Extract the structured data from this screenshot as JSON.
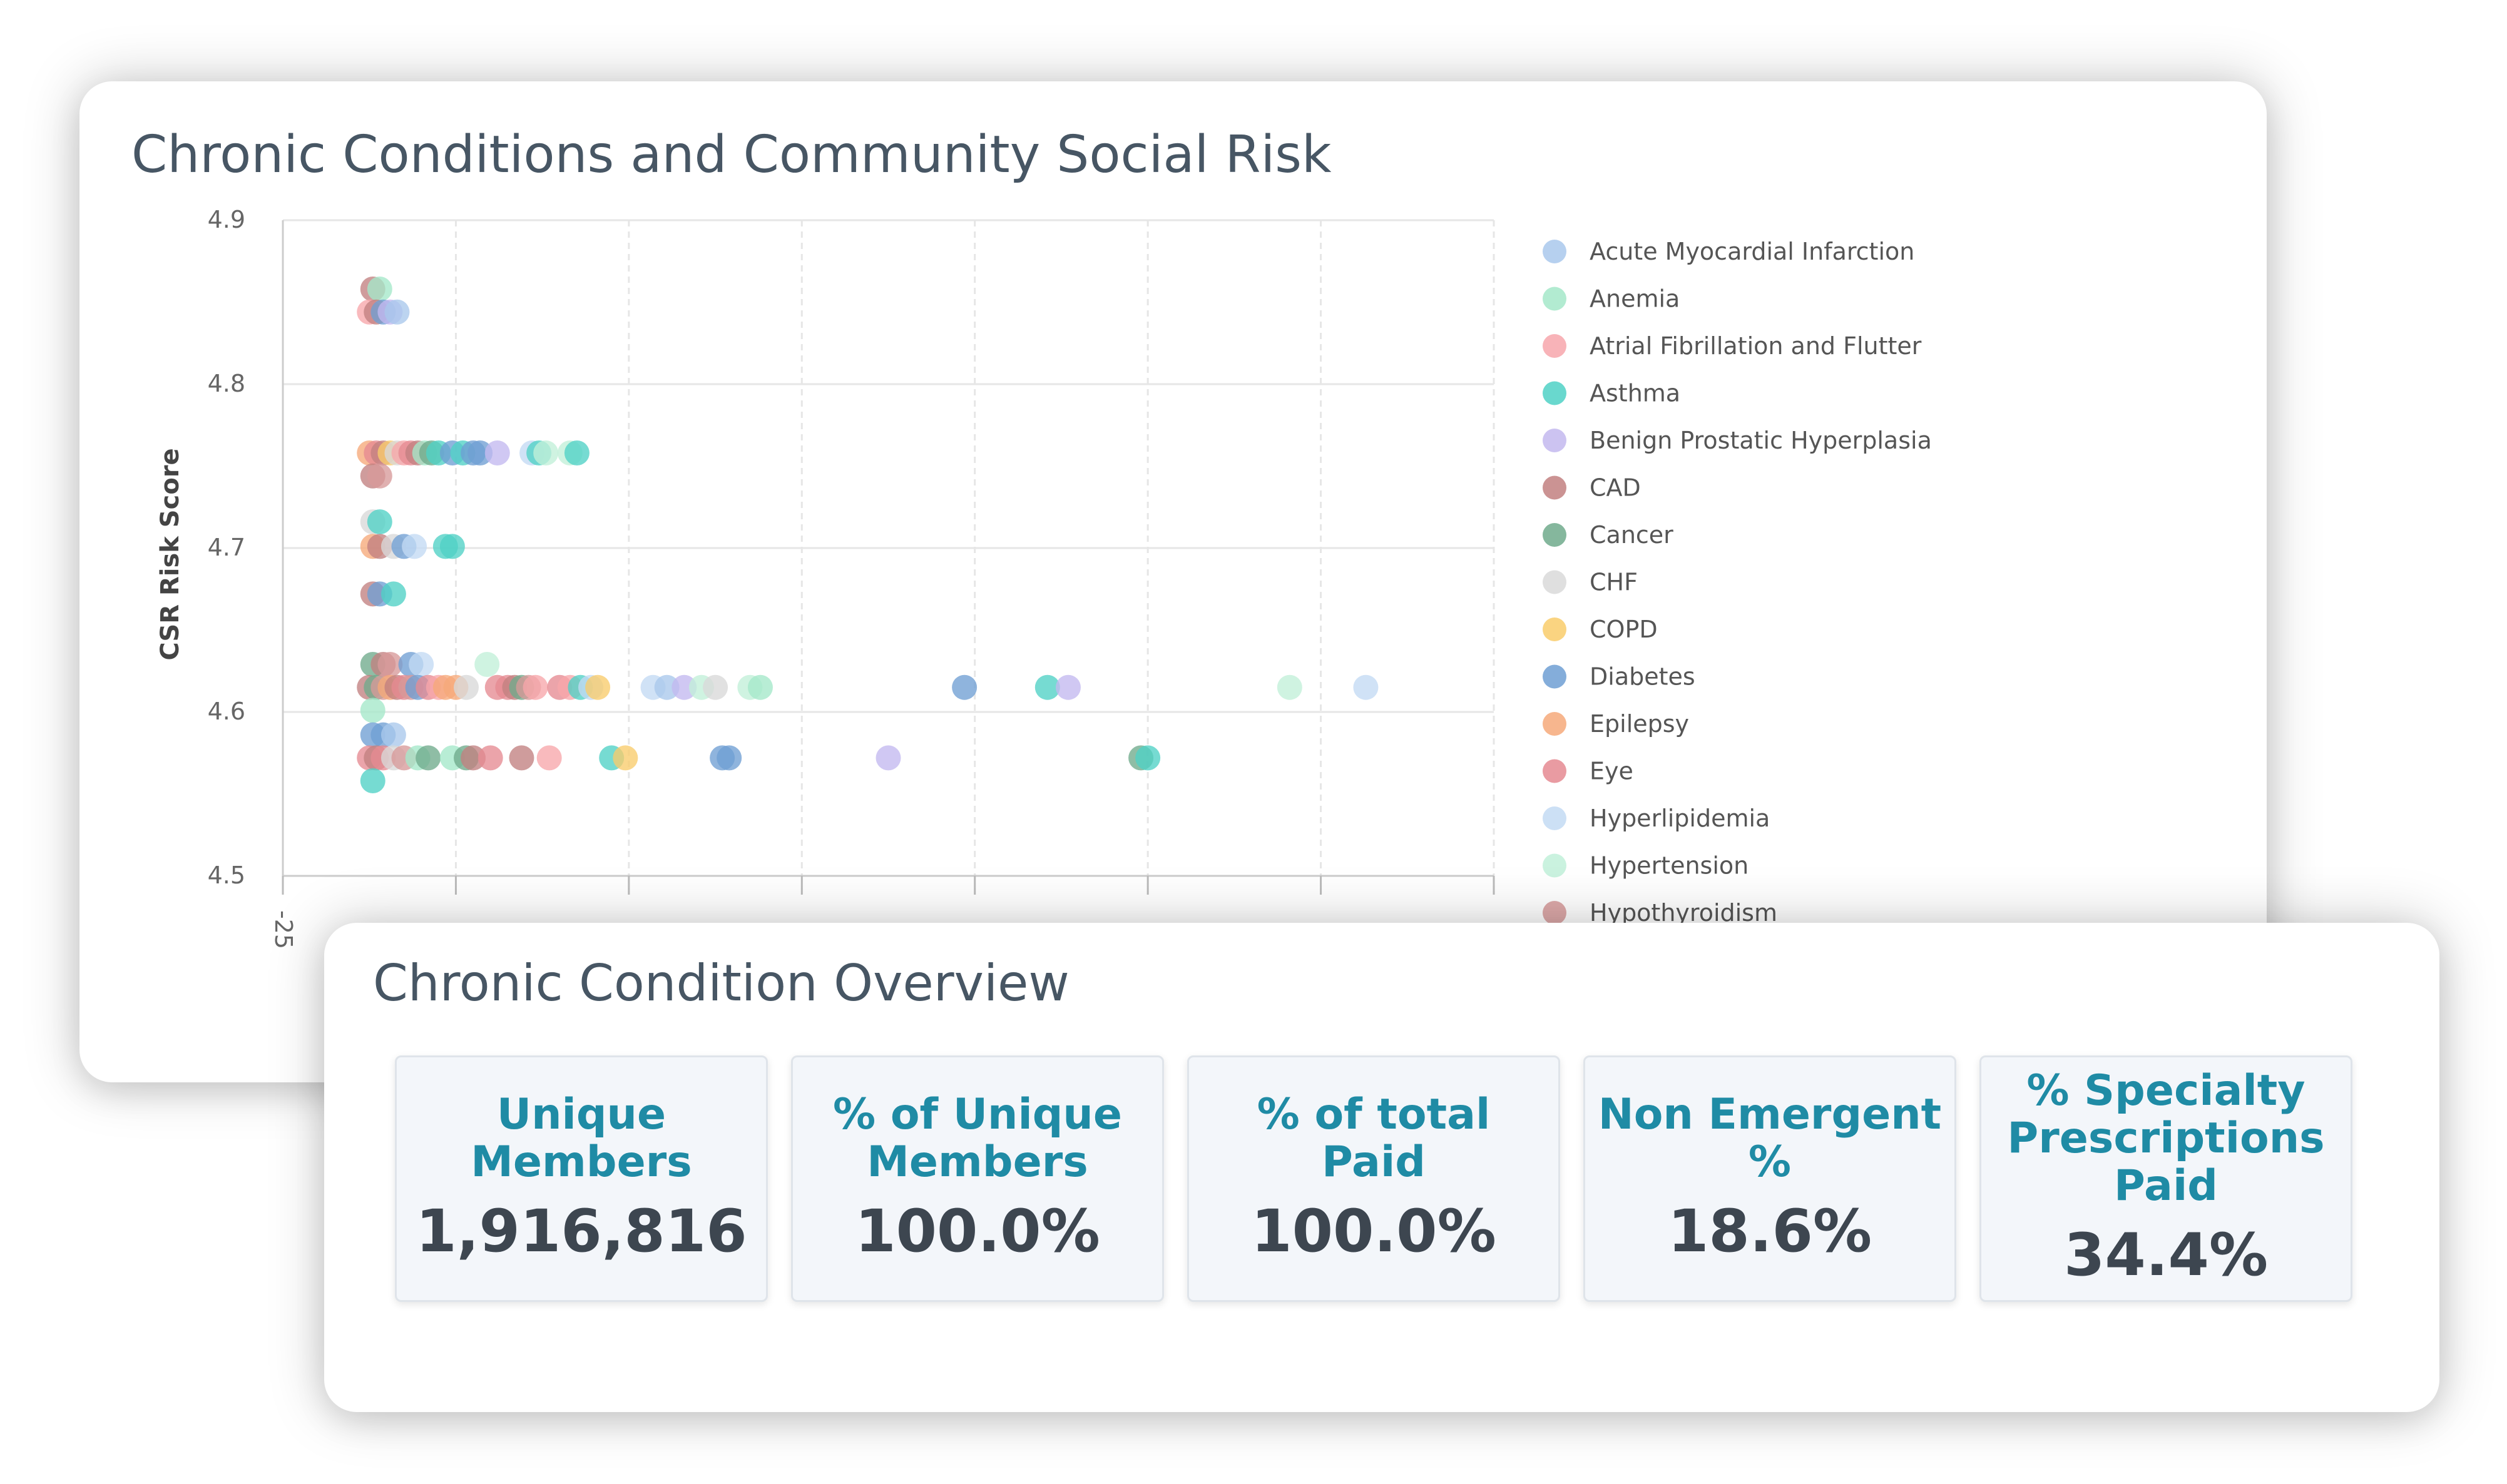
{
  "colors": {
    "Acute Myocardial Infarction": "#a9c8ec",
    "Anemia": "#a4e8c9",
    "Atrial Fibrillation and Flutter": "#f7a6ab",
    "Asthma": "#4fd1c5",
    "Benign Prostatic Hyperplasia": "#c3b8ef",
    "CAD": "#c28080",
    "Cancer": "#70aa8c",
    "CHF": "#d9d9d9",
    "COPD": "#f9cc6b",
    "Diabetes": "#6f9fd3",
    "Epilepsy": "#f6a97a",
    "Eye": "#e58a92",
    "Hyperlipidemia": "#c3daf3",
    "Hypertension": "#c1f0d9",
    "Hypothyroidism": "#d79a9a"
  },
  "chart_data": {
    "type": "scatter",
    "title": "Chronic Conditions and Community Social Risk",
    "xlabel": "",
    "ylabel": "CSR Risk Score",
    "xlim": [
      -25,
      325
    ],
    "ylim": [
      4.5,
      4.9
    ],
    "x_ticks": [
      "-25"
    ],
    "y_ticks": [
      "4.9",
      "4.8",
      "4.7",
      "4.6",
      "4.5"
    ],
    "grid": true,
    "legend_position": "right",
    "legend": [
      "Acute Myocardial Infarction",
      "Anemia",
      "Atrial Fibrillation and Flutter",
      "Asthma",
      "Benign Prostatic Hyperplasia",
      "CAD",
      "Cancer",
      "CHF",
      "COPD",
      "Diabetes",
      "Epilepsy",
      "Eye",
      "Hyperlipidemia",
      "Hypertension",
      "Hypothyroidism"
    ],
    "points": [
      {
        "s": "CAD",
        "x": 1,
        "y": 4.858
      },
      {
        "s": "Anemia",
        "x": 3,
        "y": 4.858
      },
      {
        "s": "Atrial Fibrillation and Flutter",
        "x": 0,
        "y": 4.844
      },
      {
        "s": "CAD",
        "x": 2,
        "y": 4.844
      },
      {
        "s": "Diabetes",
        "x": 4,
        "y": 4.844
      },
      {
        "s": "Benign Prostatic Hyperplasia",
        "x": 6,
        "y": 4.844
      },
      {
        "s": "Acute Myocardial Infarction",
        "x": 8,
        "y": 4.844
      },
      {
        "s": "Epilepsy",
        "x": 0,
        "y": 4.758
      },
      {
        "s": "Eye",
        "x": 2,
        "y": 4.758
      },
      {
        "s": "CAD",
        "x": 4,
        "y": 4.758
      },
      {
        "s": "COPD",
        "x": 6,
        "y": 4.758
      },
      {
        "s": "CHF",
        "x": 8,
        "y": 4.758
      },
      {
        "s": "Atrial Fibrillation and Flutter",
        "x": 10,
        "y": 4.758
      },
      {
        "s": "Eye",
        "x": 12,
        "y": 4.758
      },
      {
        "s": "CAD",
        "x": 14,
        "y": 4.758
      },
      {
        "s": "Anemia",
        "x": 16,
        "y": 4.758
      },
      {
        "s": "Cancer",
        "x": 18,
        "y": 4.758
      },
      {
        "s": "Asthma",
        "x": 20,
        "y": 4.758
      },
      {
        "s": "Diabetes",
        "x": 24,
        "y": 4.758
      },
      {
        "s": "Asthma",
        "x": 27,
        "y": 4.758
      },
      {
        "s": "Diabetes",
        "x": 30,
        "y": 4.758
      },
      {
        "s": "Diabetes",
        "x": 32,
        "y": 4.758
      },
      {
        "s": "Benign Prostatic Hyperplasia",
        "x": 37,
        "y": 4.758
      },
      {
        "s": "Hyperlipidemia",
        "x": 47,
        "y": 4.758
      },
      {
        "s": "Asthma",
        "x": 49,
        "y": 4.758
      },
      {
        "s": "Hypertension",
        "x": 51,
        "y": 4.758
      },
      {
        "s": "Hypertension",
        "x": 58,
        "y": 4.758
      },
      {
        "s": "Asthma",
        "x": 60,
        "y": 4.758
      },
      {
        "s": "CAD",
        "x": 1,
        "y": 4.744
      },
      {
        "s": "Hypothyroidism",
        "x": 3,
        "y": 4.744
      },
      {
        "s": "CHF",
        "x": 1,
        "y": 4.716
      },
      {
        "s": "Asthma",
        "x": 3,
        "y": 4.716
      },
      {
        "s": "Epilepsy",
        "x": 1,
        "y": 4.701
      },
      {
        "s": "CAD",
        "x": 3,
        "y": 4.701
      },
      {
        "s": "CHF",
        "x": 7,
        "y": 4.701
      },
      {
        "s": "Diabetes",
        "x": 10,
        "y": 4.701
      },
      {
        "s": "Hyperlipidemia",
        "x": 13,
        "y": 4.701
      },
      {
        "s": "Asthma",
        "x": 22,
        "y": 4.701
      },
      {
        "s": "Asthma",
        "x": 24,
        "y": 4.701
      },
      {
        "s": "CAD",
        "x": 1,
        "y": 4.672
      },
      {
        "s": "Diabetes",
        "x": 3,
        "y": 4.672
      },
      {
        "s": "Asthma",
        "x": 7,
        "y": 4.672
      },
      {
        "s": "Cancer",
        "x": 1,
        "y": 4.629
      },
      {
        "s": "CAD",
        "x": 4,
        "y": 4.629
      },
      {
        "s": "Hypothyroidism",
        "x": 6,
        "y": 4.629
      },
      {
        "s": "Diabetes",
        "x": 12,
        "y": 4.629
      },
      {
        "s": "Hyperlipidemia",
        "x": 15,
        "y": 4.629
      },
      {
        "s": "Hypertension",
        "x": 34,
        "y": 4.629
      },
      {
        "s": "CAD",
        "x": 0,
        "y": 4.615
      },
      {
        "s": "Cancer",
        "x": 2,
        "y": 4.615
      },
      {
        "s": "Hypothyroidism",
        "x": 4,
        "y": 4.615
      },
      {
        "s": "Epilepsy",
        "x": 6,
        "y": 4.615
      },
      {
        "s": "CAD",
        "x": 8,
        "y": 4.615
      },
      {
        "s": "Eye",
        "x": 10,
        "y": 4.615
      },
      {
        "s": "Hypothyroidism",
        "x": 12,
        "y": 4.615
      },
      {
        "s": "Diabetes",
        "x": 14,
        "y": 4.615
      },
      {
        "s": "Eye",
        "x": 17,
        "y": 4.615
      },
      {
        "s": "Atrial Fibrillation and Flutter",
        "x": 20,
        "y": 4.615
      },
      {
        "s": "Epilepsy",
        "x": 22,
        "y": 4.615
      },
      {
        "s": "Epilepsy",
        "x": 25,
        "y": 4.615
      },
      {
        "s": "CHF",
        "x": 28,
        "y": 4.615
      },
      {
        "s": "Eye",
        "x": 37,
        "y": 4.615
      },
      {
        "s": "Eye",
        "x": 40,
        "y": 4.615
      },
      {
        "s": "CAD",
        "x": 42,
        "y": 4.615
      },
      {
        "s": "Cancer",
        "x": 44,
        "y": 4.615
      },
      {
        "s": "Hypothyroidism",
        "x": 46,
        "y": 4.615
      },
      {
        "s": "Atrial Fibrillation and Flutter",
        "x": 48,
        "y": 4.615
      },
      {
        "s": "Eye",
        "x": 55,
        "y": 4.615
      },
      {
        "s": "Atrial Fibrillation and Flutter",
        "x": 58,
        "y": 4.615
      },
      {
        "s": "Asthma",
        "x": 61,
        "y": 4.615
      },
      {
        "s": "Hyperlipidemia",
        "x": 64,
        "y": 4.615
      },
      {
        "s": "COPD",
        "x": 66,
        "y": 4.615
      },
      {
        "s": "Hyperlipidemia",
        "x": 82,
        "y": 4.615
      },
      {
        "s": "Acute Myocardial Infarction",
        "x": 86,
        "y": 4.615
      },
      {
        "s": "Benign Prostatic Hyperplasia",
        "x": 91,
        "y": 4.615
      },
      {
        "s": "Hypertension",
        "x": 96,
        "y": 4.615
      },
      {
        "s": "CHF",
        "x": 100,
        "y": 4.615
      },
      {
        "s": "Hypertension",
        "x": 110,
        "y": 4.615
      },
      {
        "s": "Anemia",
        "x": 113,
        "y": 4.615
      },
      {
        "s": "Diabetes",
        "x": 172,
        "y": 4.615
      },
      {
        "s": "Asthma",
        "x": 196,
        "y": 4.615
      },
      {
        "s": "Benign Prostatic Hyperplasia",
        "x": 202,
        "y": 4.615
      },
      {
        "s": "Hypertension",
        "x": 266,
        "y": 4.615
      },
      {
        "s": "Hyperlipidemia",
        "x": 288,
        "y": 4.615
      },
      {
        "s": "Anemia",
        "x": 1,
        "y": 4.601
      },
      {
        "s": "Diabetes",
        "x": 1,
        "y": 4.586
      },
      {
        "s": "Diabetes",
        "x": 4,
        "y": 4.586
      },
      {
        "s": "Acute Myocardial Infarction",
        "x": 7,
        "y": 4.586
      },
      {
        "s": "Eye",
        "x": 0,
        "y": 4.572
      },
      {
        "s": "CAD",
        "x": 2,
        "y": 4.572
      },
      {
        "s": "Eye",
        "x": 4,
        "y": 4.572
      },
      {
        "s": "CHF",
        "x": 7,
        "y": 4.572
      },
      {
        "s": "Hypothyroidism",
        "x": 10,
        "y": 4.572
      },
      {
        "s": "Anemia",
        "x": 14,
        "y": 4.572
      },
      {
        "s": "Cancer",
        "x": 17,
        "y": 4.572
      },
      {
        "s": "Anemia",
        "x": 24,
        "y": 4.572
      },
      {
        "s": "Cancer",
        "x": 28,
        "y": 4.572
      },
      {
        "s": "CAD",
        "x": 30,
        "y": 4.572
      },
      {
        "s": "Eye",
        "x": 35,
        "y": 4.572
      },
      {
        "s": "CAD",
        "x": 44,
        "y": 4.572
      },
      {
        "s": "Atrial Fibrillation and Flutter",
        "x": 52,
        "y": 4.572
      },
      {
        "s": "Asthma",
        "x": 70,
        "y": 4.572
      },
      {
        "s": "COPD",
        "x": 74,
        "y": 4.572
      },
      {
        "s": "Diabetes",
        "x": 102,
        "y": 4.572
      },
      {
        "s": "Diabetes",
        "x": 104,
        "y": 4.572
      },
      {
        "s": "Benign Prostatic Hyperplasia",
        "x": 150,
        "y": 4.572
      },
      {
        "s": "Cancer",
        "x": 223,
        "y": 4.572
      },
      {
        "s": "Asthma",
        "x": 225,
        "y": 4.572
      },
      {
        "s": "Asthma",
        "x": 1,
        "y": 4.558
      }
    ]
  },
  "overview": {
    "title": "Chronic Condition Overview",
    "kpis": [
      {
        "label": "Unique Members",
        "value": "1,916,816"
      },
      {
        "label": "% of Unique Members",
        "value": "100.0%"
      },
      {
        "label": "% of total Paid",
        "value": "100.0%"
      },
      {
        "label": "Non Emergent %",
        "value": "18.6%"
      },
      {
        "label": "% Specialty Prescriptions Paid",
        "value": "34.4%"
      }
    ]
  }
}
